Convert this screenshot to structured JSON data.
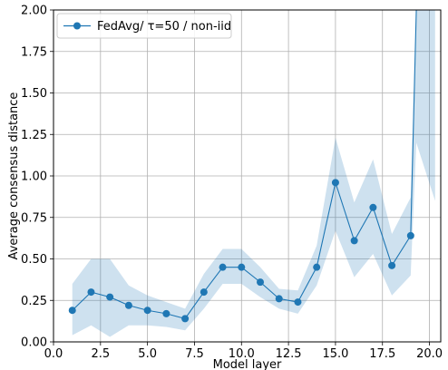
{
  "chart_data": {
    "type": "line",
    "title": "",
    "xlabel": "Model layer",
    "ylabel": "Average consensus distance",
    "xlim": [
      0.0,
      20.6
    ],
    "ylim": [
      0.0,
      2.0
    ],
    "xticks": [
      0.0,
      2.5,
      5.0,
      7.5,
      10.0,
      12.5,
      15.0,
      17.5,
      20.0
    ],
    "xtick_labels": [
      "0.0",
      "2.5",
      "5.0",
      "7.5",
      "10.0",
      "12.5",
      "15.0",
      "17.5",
      "20.0"
    ],
    "yticks": [
      0.0,
      0.25,
      0.5,
      0.75,
      1.0,
      1.25,
      1.5,
      1.75,
      2.0
    ],
    "ytick_labels": [
      "0.00",
      "0.25",
      "0.50",
      "0.75",
      "1.00",
      "1.25",
      "1.50",
      "1.75",
      "2.00"
    ],
    "grid": true,
    "legend_position": "top-left",
    "series": [
      {
        "name": "FedAvg/ τ=50 / non-iid",
        "color": "#1f77b4",
        "band_color": "#1f77b4",
        "x": [
          1,
          2,
          3,
          4,
          5,
          6,
          7,
          8,
          9,
          10,
          11,
          12,
          13,
          14,
          15,
          16,
          17,
          18,
          19
        ],
        "values": [
          0.19,
          0.3,
          0.27,
          0.22,
          0.19,
          0.17,
          0.14,
          0.3,
          0.45,
          0.45,
          0.36,
          0.26,
          0.24,
          0.45,
          0.96,
          0.61,
          0.81,
          0.46,
          0.64
        ],
        "lower": [
          0.04,
          0.1,
          0.03,
          0.1,
          0.1,
          0.09,
          0.07,
          0.2,
          0.35,
          0.35,
          0.27,
          0.2,
          0.17,
          0.34,
          0.67,
          0.39,
          0.53,
          0.28,
          0.4
        ],
        "upper": [
          0.35,
          0.5,
          0.5,
          0.34,
          0.28,
          0.24,
          0.2,
          0.41,
          0.56,
          0.56,
          0.45,
          0.32,
          0.31,
          0.58,
          1.23,
          0.84,
          1.1,
          0.65,
          0.87
        ],
        "tail": {
          "x": [
            19.3,
            20.3
          ],
          "values": [
            2.0,
            2.0
          ],
          "lower": [
            1.2,
            0.85
          ],
          "upper": [
            2.0,
            2.0
          ]
        }
      }
    ]
  },
  "legend": {
    "entries": [
      "FedAvg/ τ=50 / non-iid"
    ]
  }
}
